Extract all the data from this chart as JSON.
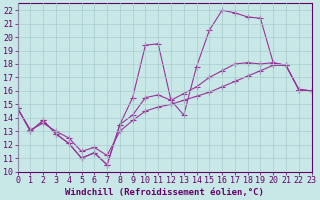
{
  "xlabel": "Windchill (Refroidissement éolien,°C)",
  "bg_color": "#c8e8e8",
  "line_color": "#993399",
  "xlim": [
    0,
    23
  ],
  "ylim": [
    10,
    22.5
  ],
  "xticks": [
    0,
    1,
    2,
    3,
    4,
    5,
    6,
    7,
    8,
    9,
    10,
    11,
    12,
    13,
    14,
    15,
    16,
    17,
    18,
    19,
    20,
    21,
    22,
    23
  ],
  "yticks": [
    10,
    11,
    12,
    13,
    14,
    15,
    16,
    17,
    18,
    19,
    20,
    21,
    22
  ],
  "curve1_x": [
    0,
    1,
    2,
    3,
    4,
    5,
    6,
    7,
    8,
    9,
    10,
    11,
    12,
    13,
    14,
    15,
    16,
    17,
    18,
    19,
    20,
    21,
    22,
    23
  ],
  "curve1_y": [
    14.7,
    13.0,
    13.8,
    12.8,
    12.1,
    11.0,
    11.4,
    10.5,
    13.5,
    15.5,
    19.4,
    19.5,
    15.3,
    14.2,
    17.8,
    20.5,
    22.0,
    21.8,
    21.5,
    21.4,
    18.1,
    17.9,
    16.1,
    16.0
  ],
  "curve2_x": [
    0,
    1,
    2,
    3,
    4,
    5,
    6,
    7,
    8,
    9,
    10,
    11,
    12,
    13,
    14,
    15,
    16,
    17,
    18,
    19,
    20,
    21,
    22,
    23
  ],
  "curve2_y": [
    14.7,
    13.0,
    13.8,
    12.8,
    12.1,
    11.0,
    11.4,
    10.5,
    13.5,
    14.2,
    15.5,
    15.7,
    15.3,
    15.8,
    16.3,
    17.0,
    17.5,
    18.0,
    18.1,
    18.0,
    18.1,
    17.9,
    16.1,
    16.0
  ],
  "curve3_x": [
    0,
    1,
    2,
    3,
    4,
    5,
    6,
    7,
    8,
    9,
    10,
    11,
    12,
    13,
    14,
    15,
    16,
    17,
    18,
    19,
    20,
    21,
    22,
    23
  ],
  "curve3_y": [
    14.7,
    13.1,
    13.6,
    13.0,
    12.5,
    11.5,
    11.8,
    11.2,
    13.0,
    13.8,
    14.5,
    14.8,
    15.0,
    15.3,
    15.6,
    15.9,
    16.3,
    16.7,
    17.1,
    17.5,
    17.9,
    17.9,
    16.1,
    16.0
  ],
  "grid_color": "#aacccc",
  "font_color": "#660066",
  "font_size": 6,
  "xlabel_fontsize": 6.5,
  "marker_size": 2.5,
  "linewidth": 0.8
}
